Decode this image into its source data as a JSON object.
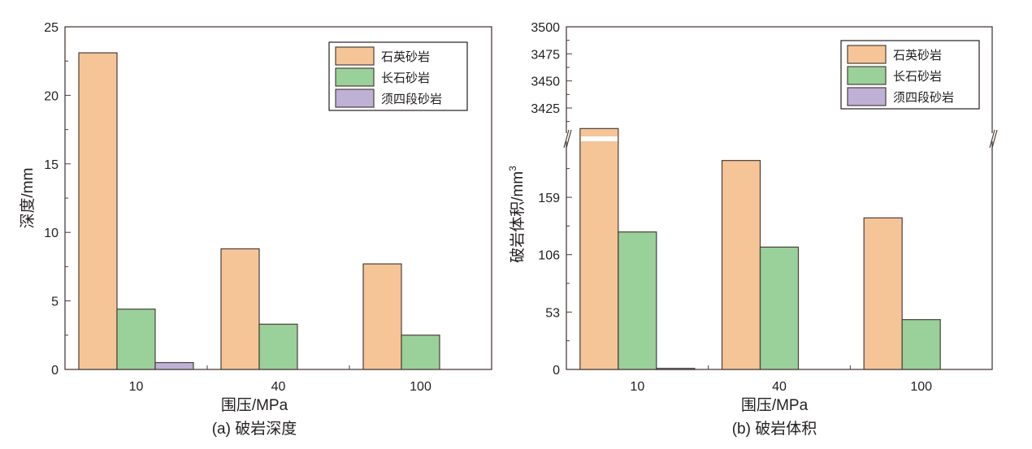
{
  "colors": {
    "quartz": "#f5c497",
    "feldspar": "#9ad09a",
    "xu": "#bfb0d6",
    "edge": "#4a3f3a"
  },
  "chart_data": [
    {
      "type": "bar",
      "caption": "(a) 破岩深度",
      "xlabel": "围压/MPa",
      "ylabel": "深度/mm",
      "categories": [
        "10",
        "40",
        "100"
      ],
      "ylim": [
        0,
        25
      ],
      "yticks": [
        "0",
        "5",
        "10",
        "15",
        "20",
        "25"
      ],
      "legend_position": "top-right",
      "series": [
        {
          "name": "石英砂岩",
          "values": [
            23.1,
            8.8,
            7.7
          ]
        },
        {
          "name": "长石砂岩",
          "values": [
            4.4,
            3.3,
            2.5
          ]
        },
        {
          "name": "须四段砂岩",
          "values": [
            0.5,
            null,
            null
          ]
        }
      ]
    },
    {
      "type": "bar",
      "caption": "(b) 破岩体积",
      "xlabel": "围压/MPa",
      "ylabel": "破岩体积/mm",
      "ylabel_sup": "3",
      "categories": [
        "10",
        "40",
        "100"
      ],
      "broken_axis": {
        "lower": [
          0,
          200
        ],
        "upper": [
          3397,
          3500
        ]
      },
      "yticks_lower": [
        "0",
        "53",
        "106",
        "159"
      ],
      "yticks_upper": [
        "3425",
        "3450",
        "3475",
        "3500"
      ],
      "legend_position": "top-right",
      "series": [
        {
          "name": "石英砂岩",
          "values": [
            3406,
            193,
            140
          ]
        },
        {
          "name": "长石砂岩",
          "values": [
            127,
            113,
            46
          ]
        },
        {
          "name": "须四段砂岩",
          "values": [
            1,
            null,
            null
          ]
        }
      ]
    }
  ]
}
